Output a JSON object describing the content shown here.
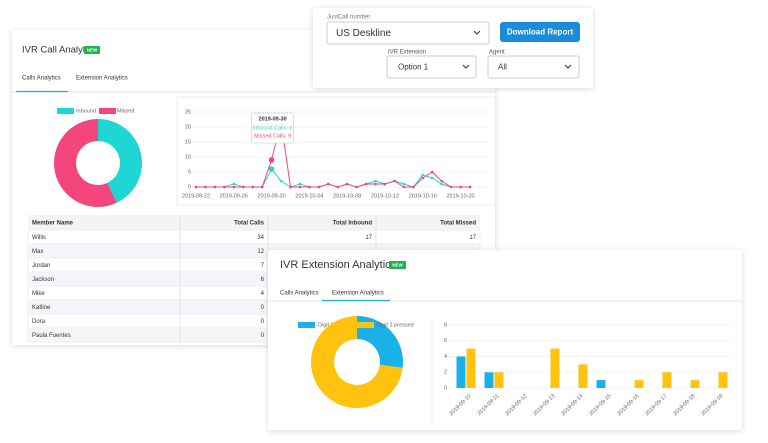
{
  "filters": {
    "number_label": "JustCall number",
    "number_value": "US Deskline",
    "download_button": "Download Report",
    "extension_label": "IVR Extension",
    "extension_value": "Option 1",
    "agent_label": "Agent",
    "agent_value": "All"
  },
  "call_panel": {
    "title": "IVR Call Analytics",
    "badge": "NEW",
    "tabs": [
      "Calls Analytics",
      "Extension Analytics"
    ],
    "table": {
      "columns": [
        "Member Name",
        "Total Calls",
        "Total Inbound",
        "Total Missed"
      ],
      "rows": [
        [
          "Willis",
          34,
          17,
          17
        ],
        [
          "Max",
          12
        ],
        [
          "Jordan",
          7
        ],
        [
          "Jackson",
          6
        ],
        [
          "Mike",
          4
        ],
        [
          "Katline",
          0
        ],
        [
          "Dora",
          0
        ],
        [
          "Paula Fuentes",
          0
        ]
      ]
    }
  },
  "extension_panel": {
    "title": "IVR Extension Analytics",
    "badge": "NEW",
    "tabs": [
      "Calls Analytics",
      "Extension Analytics"
    ]
  },
  "chart_data": [
    {
      "type": "pie",
      "donut": true,
      "categories": [
        "Inbound",
        "Missed"
      ],
      "values": [
        43,
        57
      ],
      "colors": [
        "#1ed6d4",
        "#f2467c"
      ]
    },
    {
      "type": "line",
      "grid": true,
      "categories": [
        "2019-09-22",
        null,
        null,
        null,
        "2019-09-26",
        null,
        null,
        null,
        "2019-09-30",
        null,
        null,
        null,
        "2019-10-04",
        null,
        null,
        null,
        "2019-10-08",
        null,
        null,
        null,
        "2019-10-12",
        null,
        null,
        null,
        "2019-10-16",
        null,
        null,
        null,
        "2019-10-20",
        null
      ],
      "series": [
        {
          "color": "#1ed6d4",
          "values": [
            0,
            0,
            0,
            0,
            1,
            0,
            0,
            0,
            6,
            2,
            0,
            1,
            0,
            0,
            1,
            0,
            1,
            0,
            1,
            2,
            1,
            2,
            1,
            0,
            4,
            3,
            1,
            0,
            0,
            0
          ]
        },
        {
          "color": "#f2467c",
          "values": [
            0,
            0,
            0,
            0,
            0,
            0,
            0,
            0,
            9,
            22,
            0,
            0,
            0,
            0,
            1,
            0,
            1,
            0,
            1,
            1,
            1,
            2,
            0,
            0,
            3,
            5,
            2,
            0,
            0,
            0
          ]
        }
      ],
      "ylim": [
        0,
        25
      ],
      "yticks": [
        0,
        5,
        10,
        15,
        20,
        25
      ],
      "annotation": {
        "title": "2019-09-30",
        "lines": [
          "Inbound Calls: 6",
          "Missed Calls: 9"
        ]
      }
    },
    {
      "type": "pie",
      "donut": true,
      "categories": [
        "Digit 1 pressed",
        "Digit 2 pressed"
      ],
      "values": [
        27,
        73
      ],
      "colors": [
        "#1ab0e8",
        "#ffc20e"
      ]
    },
    {
      "type": "bar",
      "grid": true,
      "categories": [
        "2019-09-10",
        "2019-09-11",
        "2019-09-12",
        "2019-09-13",
        "2019-09-14",
        "2019-09-15",
        "2019-09-16",
        "2019-09-17",
        "2019-09-18",
        "2019-09-19"
      ],
      "series": [
        {
          "color": "#1ab0e8",
          "values": [
            4,
            2,
            0,
            0,
            0,
            1,
            0,
            0,
            0,
            0
          ]
        },
        {
          "color": "#ffc20e",
          "values": [
            5,
            2,
            0,
            5,
            3,
            0,
            1,
            2,
            1,
            2
          ]
        }
      ],
      "ylim": [
        0,
        8
      ],
      "yticks": [
        0,
        2,
        4,
        6,
        8
      ]
    }
  ]
}
